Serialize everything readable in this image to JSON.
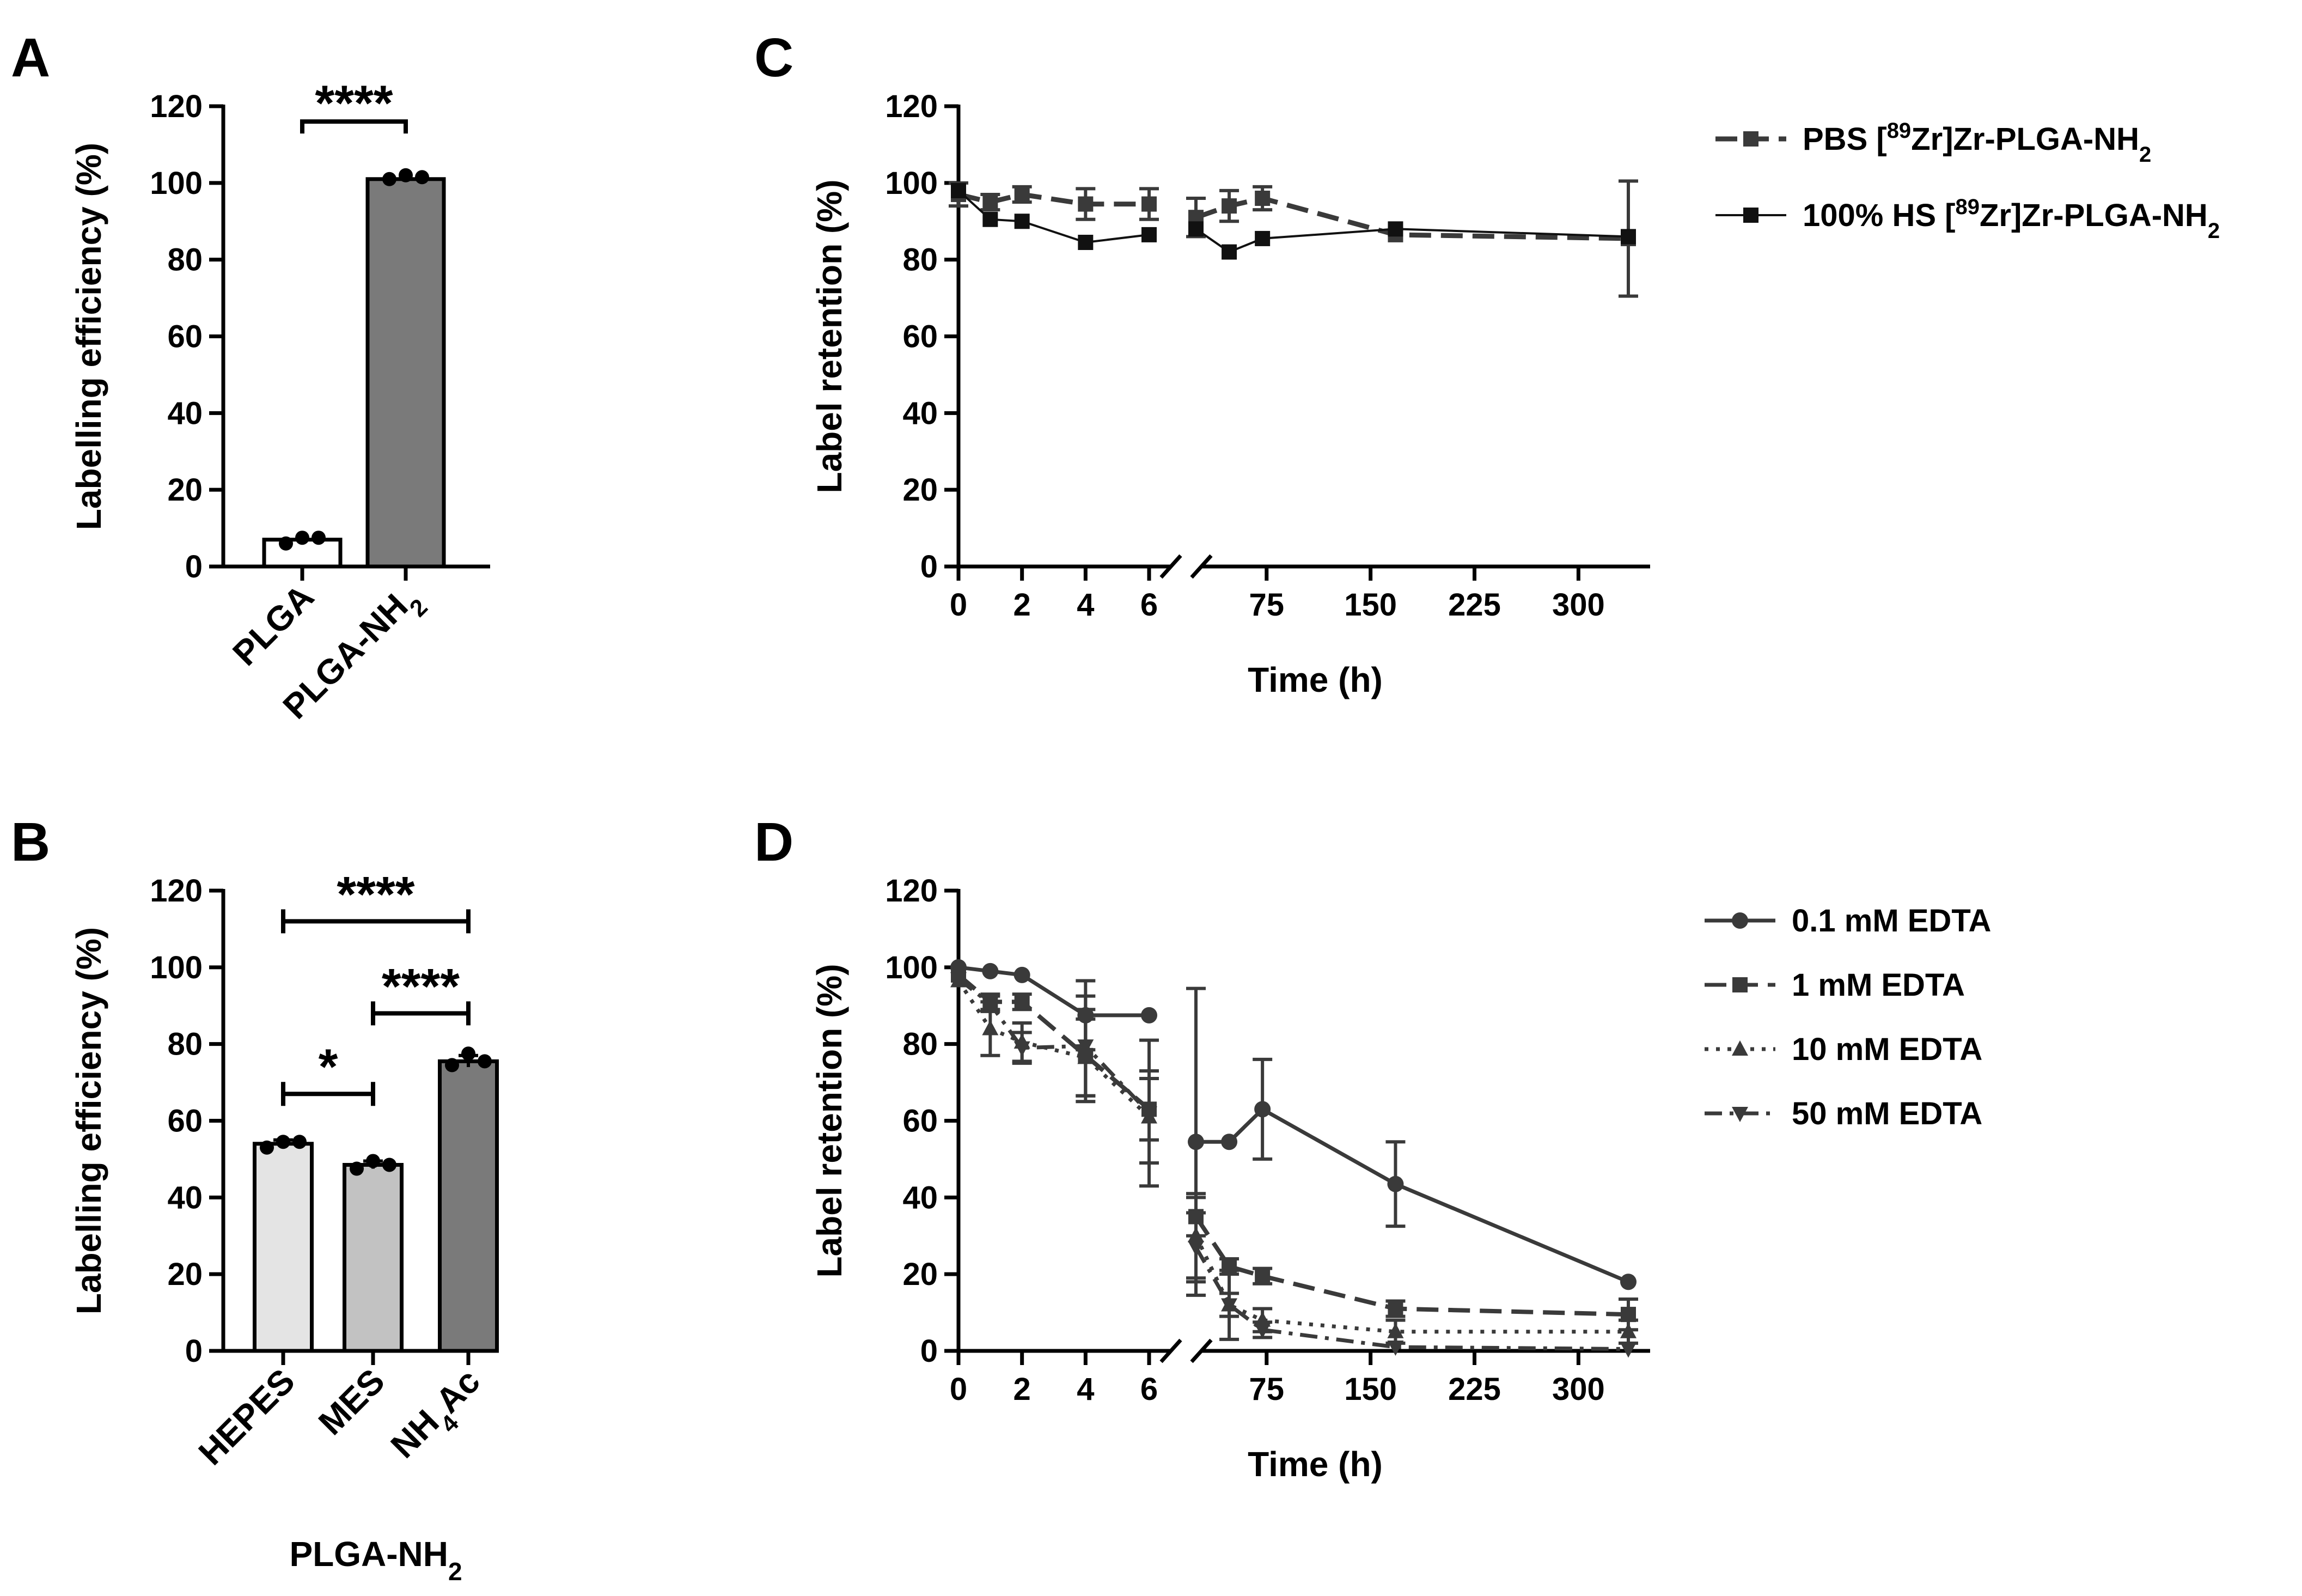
{
  "colors": {
    "axis": "#000000",
    "bar_plga": "#ffffff",
    "bar_plga_nh2": "#7a7a7a",
    "bar_hepes": "#e4e4e4",
    "bar_mes": "#c2c2c2",
    "bar_nh4ac": "#7a7a7a",
    "series_dark": "#3a3a3a",
    "series_black": "#111111"
  },
  "chart_data": [
    {
      "panel": "A",
      "type": "bar",
      "ylabel": "Labelling efficiency (%)",
      "xlabel": "",
      "ylim": [
        0,
        120
      ],
      "yticks": [
        "0",
        "20",
        "40",
        "60",
        "80",
        "100",
        "120"
      ],
      "categories": [
        "PLGA",
        "PLGA-NH2"
      ],
      "category_labels": [
        {
          "main": "PLGA",
          "sub": ""
        },
        {
          "main": "PLGA-NH",
          "sub": "2"
        }
      ],
      "values": [
        7,
        101
      ],
      "points": [
        [
          6,
          7.5,
          7.5
        ],
        [
          101,
          102,
          101.5
        ]
      ],
      "significance": [
        {
          "from": 0,
          "to": 1,
          "label": "****",
          "y": 116
        }
      ]
    },
    {
      "panel": "B",
      "type": "bar",
      "ylabel": "Labelling efficiency (%)",
      "xlabel_main": "PLGA-NH",
      "xlabel_sub": "2",
      "ylim": [
        0,
        120
      ],
      "yticks": [
        "0",
        "20",
        "40",
        "60",
        "80",
        "100",
        "120"
      ],
      "categories": [
        "HEPES",
        "MES",
        "NH4Ac"
      ],
      "category_labels": [
        {
          "main": "HEPES",
          "sub": "",
          "tail": ""
        },
        {
          "main": "MES",
          "sub": "",
          "tail": ""
        },
        {
          "main": "NH",
          "sub": "4",
          "tail": "Ac"
        }
      ],
      "values": [
        54,
        48.5,
        75.5
      ],
      "points": [
        [
          53,
          54.5,
          54.5
        ],
        [
          47.5,
          49.5,
          48.5
        ],
        [
          74.5,
          77.5,
          75.5
        ]
      ],
      "errors": [
        1,
        1,
        1.5
      ],
      "significance": [
        {
          "from": 0,
          "to": 2,
          "label": "****",
          "y": 112
        },
        {
          "from": 1,
          "to": 2,
          "label": "****",
          "y": 88
        },
        {
          "from": 0,
          "to": 1,
          "label": "*",
          "y": 67
        }
      ]
    },
    {
      "panel": "C",
      "type": "line",
      "ylabel": "Label retention (%)",
      "xlabel": "Time (h)",
      "ylim": [
        0,
        120
      ],
      "yticks": [
        "0",
        "20",
        "40",
        "60",
        "80",
        "100",
        "120"
      ],
      "xticks_left": [
        "0",
        "2",
        "4",
        "6"
      ],
      "xticks_right": [
        "75",
        "150",
        "225",
        "300"
      ],
      "x": [
        0,
        1,
        2,
        4,
        6,
        24,
        48,
        72,
        168,
        336
      ],
      "series": [
        {
          "name_pre": "PBS [",
          "name_sup": "89",
          "name_mid": "Zr]Zr-PLGA-NH",
          "name_sub": "2",
          "marker": "square",
          "dash": "dashed",
          "values": [
            97,
            95,
            97,
            94.5,
            94.5,
            91,
            94,
            96,
            86.5,
            85.5
          ],
          "errors": [
            3,
            2,
            2,
            4,
            4,
            5,
            4,
            3,
            1,
            15
          ]
        },
        {
          "name_pre": "100% HS [",
          "name_sup": "89",
          "name_mid": "Zr]Zr-PLGA-NH",
          "name_sub": "2",
          "marker": "square",
          "dash": "solid",
          "values": [
            98,
            90.5,
            90,
            84.5,
            86.5,
            88,
            82,
            85.5,
            88,
            86
          ],
          "errors": [
            1,
            1,
            1,
            1,
            1,
            1,
            1,
            1,
            1,
            1
          ]
        }
      ]
    },
    {
      "panel": "D",
      "type": "line",
      "ylabel": "Label retention (%)",
      "xlabel": "Time (h)",
      "ylim": [
        0,
        120
      ],
      "yticks": [
        "0",
        "20",
        "40",
        "60",
        "80",
        "100",
        "120"
      ],
      "xticks_left": [
        "0",
        "2",
        "4",
        "6"
      ],
      "xticks_right": [
        "75",
        "150",
        "225",
        "300"
      ],
      "x": [
        0,
        1,
        2,
        4,
        6,
        24,
        48,
        72,
        168,
        336
      ],
      "series": [
        {
          "name": "0.1 mM EDTA",
          "marker": "circle",
          "dash": "solid",
          "values": [
            100,
            99,
            98,
            87.5,
            87.5,
            54.5,
            54.5,
            63,
            43.5,
            18
          ],
          "errors": [
            1,
            1,
            1,
            9,
            1,
            40,
            1,
            13,
            11,
            1
          ]
        },
        {
          "name": "1 mM EDTA",
          "marker": "square",
          "dash": "dashed",
          "values": [
            98,
            91,
            91,
            77,
            63,
            35,
            22,
            19.5,
            11,
            9.5
          ],
          "errors": [
            1,
            2,
            2,
            12,
            8,
            5,
            2,
            2,
            2,
            4
          ]
        },
        {
          "name": "10 mM EDTA",
          "marker": "triangle-up",
          "dash": "dotted",
          "values": [
            96.5,
            84,
            80.5,
            76.5,
            61,
            30,
            12,
            8,
            5,
            5
          ],
          "errors": [
            1,
            7,
            5,
            10,
            12,
            11,
            3,
            3,
            3,
            3
          ]
        },
        {
          "name": "50 mM EDTA",
          "marker": "triangle-down",
          "dash": "dashdot",
          "values": [
            97,
            90.5,
            79,
            79.5,
            62,
            27,
            12,
            5.5,
            1,
            0.5
          ],
          "errors": [
            1,
            2,
            4,
            13,
            19,
            9,
            9,
            2,
            1,
            1
          ]
        }
      ]
    }
  ]
}
